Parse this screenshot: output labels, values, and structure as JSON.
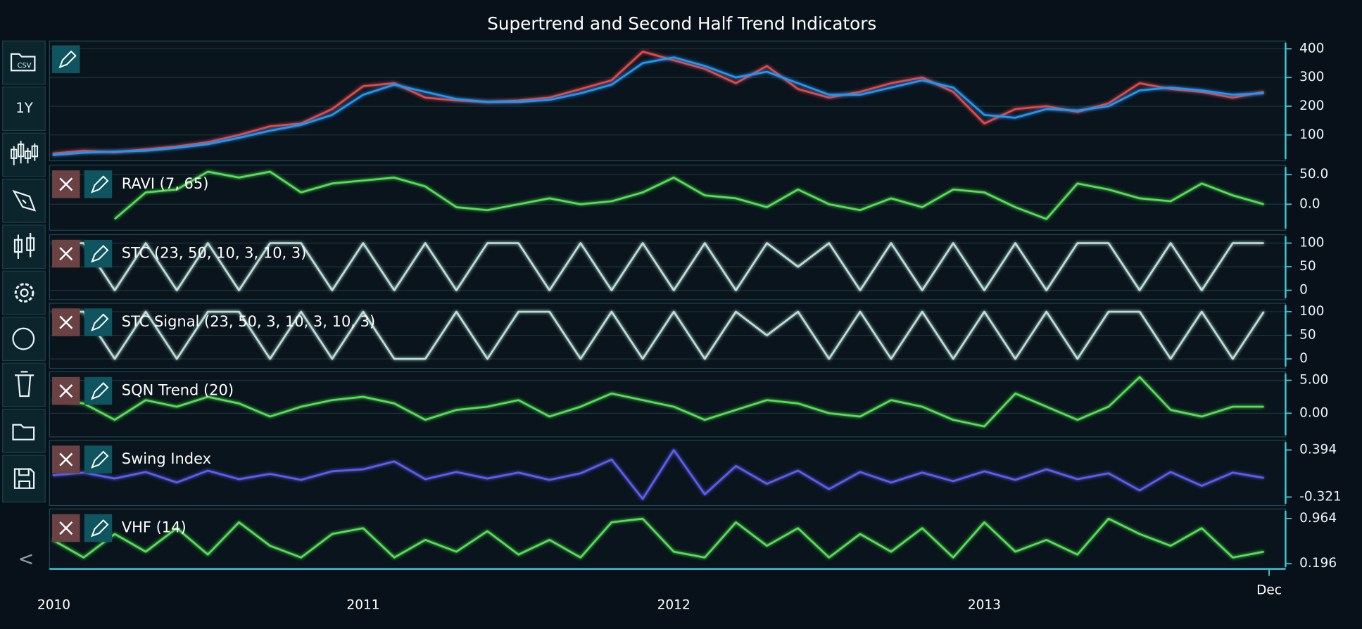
{
  "title": "Supertrend and Second Half Trend Indicators",
  "toolbar": {
    "csv": "CSV",
    "range": "1Y",
    "back": "<"
  },
  "chart_data": [
    {
      "type": "line",
      "xlim": [
        2009.99,
        2013.97
      ],
      "ylim": [
        10,
        427
      ],
      "yticks": [
        100,
        200,
        300,
        400
      ],
      "grid": true,
      "x": [
        2010.0,
        2010.1,
        2010.2,
        2010.3,
        2010.4,
        2010.5,
        2010.6,
        2010.7,
        2010.8,
        2010.9,
        2011.0,
        2011.1,
        2011.2,
        2011.3,
        2011.4,
        2011.5,
        2011.6,
        2011.7,
        2011.8,
        2011.9,
        2012.0,
        2012.1,
        2012.2,
        2012.3,
        2012.4,
        2012.5,
        2012.6,
        2012.7,
        2012.8,
        2012.9,
        2013.0,
        2013.1,
        2013.2,
        2013.3,
        2013.4,
        2013.5,
        2013.6,
        2013.7,
        2013.8,
        2013.9
      ],
      "series": [
        {
          "color": "#e0484d",
          "values": [
            35,
            45,
            40,
            50,
            60,
            75,
            100,
            130,
            140,
            190,
            270,
            280,
            230,
            220,
            215,
            220,
            230,
            260,
            290,
            390,
            360,
            330,
            280,
            340,
            260,
            230,
            250,
            280,
            300,
            250,
            140,
            190,
            200,
            180,
            210,
            280,
            260,
            250,
            230,
            250
          ]
        },
        {
          "color": "#2196f3",
          "values": [
            30,
            38,
            42,
            45,
            55,
            68,
            90,
            115,
            135,
            170,
            240,
            275,
            250,
            225,
            215,
            215,
            222,
            245,
            275,
            350,
            370,
            340,
            300,
            320,
            280,
            240,
            240,
            265,
            290,
            265,
            170,
            160,
            190,
            185,
            200,
            255,
            265,
            255,
            240,
            245
          ]
        }
      ]
    },
    {
      "type": "line",
      "label": "RAVI (7, 65)",
      "xlim": [
        2009.99,
        2013.97
      ],
      "ylim": [
        -44,
        66
      ],
      "yticks": [
        {
          "value": 50,
          "label": "50.0"
        },
        {
          "value": 0,
          "label": "0.0"
        }
      ],
      "grid": true,
      "x": [
        2010.0,
        2010.1,
        2010.2,
        2010.3,
        2010.4,
        2010.5,
        2010.6,
        2010.7,
        2010.8,
        2010.9,
        2011.0,
        2011.1,
        2011.2,
        2011.3,
        2011.4,
        2011.5,
        2011.6,
        2011.7,
        2011.8,
        2011.9,
        2012.0,
        2012.1,
        2012.2,
        2012.3,
        2012.4,
        2012.5,
        2012.6,
        2012.7,
        2012.8,
        2012.9,
        2013.0,
        2013.1,
        2013.2,
        2013.3,
        2013.4,
        2013.5,
        2013.6,
        2013.7,
        2013.8,
        2013.9
      ],
      "series": [
        {
          "color": "#52e052",
          "values": [
            null,
            null,
            -25,
            20,
            25,
            55,
            45,
            55,
            20,
            35,
            40,
            45,
            30,
            -5,
            -10,
            0,
            10,
            0,
            5,
            20,
            45,
            15,
            10,
            -5,
            25,
            0,
            -10,
            10,
            -5,
            25,
            20,
            -5,
            -25,
            35,
            25,
            10,
            5,
            35,
            15,
            0
          ]
        }
      ]
    },
    {
      "type": "line",
      "label": "STC (23, 50, 10, 3, 10, 3)",
      "xlim": [
        2009.99,
        2013.97
      ],
      "ylim": [
        -20,
        118
      ],
      "yticks": [
        0,
        50,
        100
      ],
      "grid": true,
      "x": [
        2010.0,
        2010.1,
        2010.2,
        2010.3,
        2010.4,
        2010.5,
        2010.6,
        2010.7,
        2010.8,
        2010.9,
        2011.0,
        2011.1,
        2011.2,
        2011.3,
        2011.4,
        2011.5,
        2011.6,
        2011.7,
        2011.8,
        2011.9,
        2012.0,
        2012.1,
        2012.2,
        2012.3,
        2012.4,
        2012.5,
        2012.6,
        2012.7,
        2012.8,
        2012.9,
        2013.0,
        2013.1,
        2013.2,
        2013.3,
        2013.4,
        2013.5,
        2013.6,
        2013.7,
        2013.8,
        2013.9
      ],
      "series": [
        {
          "color": "#b8e0d8",
          "values": [
            100,
            100,
            0,
            100,
            0,
            100,
            0,
            100,
            100,
            0,
            100,
            0,
            100,
            0,
            100,
            100,
            0,
            100,
            0,
            100,
            0,
            100,
            0,
            100,
            50,
            100,
            0,
            100,
            0,
            100,
            0,
            100,
            0,
            100,
            100,
            0,
            100,
            0,
            100,
            100
          ]
        }
      ]
    },
    {
      "type": "line",
      "label": "STC Signal (23, 50, 3, 10, 3, 10, 3)",
      "xlim": [
        2009.99,
        2013.97
      ],
      "ylim": [
        -20,
        118
      ],
      "yticks": [
        0,
        50,
        100
      ],
      "grid": true,
      "x": [
        2010.0,
        2010.1,
        2010.2,
        2010.3,
        2010.4,
        2010.5,
        2010.6,
        2010.7,
        2010.8,
        2010.9,
        2011.0,
        2011.1,
        2011.2,
        2011.3,
        2011.4,
        2011.5,
        2011.6,
        2011.7,
        2011.8,
        2011.9,
        2012.0,
        2012.1,
        2012.2,
        2012.3,
        2012.4,
        2012.5,
        2012.6,
        2012.7,
        2012.8,
        2012.9,
        2013.0,
        2013.1,
        2013.2,
        2013.3,
        2013.4,
        2013.5,
        2013.6,
        2013.7,
        2013.8,
        2013.9
      ],
      "series": [
        {
          "color": "#b8e0d8",
          "values": [
            100,
            100,
            0,
            100,
            0,
            100,
            100,
            0,
            100,
            0,
            100,
            0,
            0,
            100,
            0,
            100,
            100,
            0,
            100,
            0,
            100,
            0,
            100,
            50,
            100,
            0,
            100,
            0,
            100,
            0,
            100,
            0,
            100,
            0,
            100,
            100,
            0,
            100,
            0,
            100
          ]
        }
      ]
    },
    {
      "type": "line",
      "label": "SQN Trend (20)",
      "xlim": [
        2009.99,
        2013.97
      ],
      "ylim": [
        -3.6,
        6.3
      ],
      "yticks": [
        {
          "value": 5,
          "label": "5.00"
        },
        {
          "value": 0,
          "label": "0.00"
        }
      ],
      "grid": true,
      "x": [
        2010.0,
        2010.1,
        2010.2,
        2010.3,
        2010.4,
        2010.5,
        2010.6,
        2010.7,
        2010.8,
        2010.9,
        2011.0,
        2011.1,
        2011.2,
        2011.3,
        2011.4,
        2011.5,
        2011.6,
        2011.7,
        2011.8,
        2011.9,
        2012.0,
        2012.1,
        2012.2,
        2012.3,
        2012.4,
        2012.5,
        2012.6,
        2012.7,
        2012.8,
        2012.9,
        2013.0,
        2013.1,
        2013.2,
        2013.3,
        2013.4,
        2013.5,
        2013.6,
        2013.7,
        2013.8,
        2013.9
      ],
      "series": [
        {
          "color": "#52e052",
          "values": [
            2,
            1.5,
            -1,
            2,
            1,
            2.5,
            1.5,
            -0.5,
            1,
            2,
            2.5,
            1.5,
            -1,
            0.5,
            1,
            2,
            -0.5,
            1,
            3,
            2,
            1,
            -1,
            0.5,
            2,
            1.5,
            0,
            -0.5,
            2,
            1,
            -1,
            -2,
            3,
            1,
            -1,
            1,
            5.5,
            0.5,
            -0.5,
            1,
            1
          ]
        }
      ]
    },
    {
      "type": "line",
      "label": "Swing Index",
      "xlim": [
        2009.99,
        2013.97
      ],
      "ylim": [
        -0.45,
        0.54
      ],
      "yticks": [
        0.394,
        -0.321
      ],
      "grid": false,
      "x": [
        2010.0,
        2010.1,
        2010.2,
        2010.3,
        2010.4,
        2010.5,
        2010.6,
        2010.7,
        2010.8,
        2010.9,
        2011.0,
        2011.1,
        2011.2,
        2011.3,
        2011.4,
        2011.5,
        2011.6,
        2011.7,
        2011.8,
        2011.9,
        2012.0,
        2012.1,
        2012.2,
        2012.3,
        2012.4,
        2012.5,
        2012.6,
        2012.7,
        2012.8,
        2012.9,
        2013.0,
        2013.1,
        2013.2,
        2013.3,
        2013.4,
        2013.5,
        2013.6,
        2013.7,
        2013.8,
        2013.9
      ],
      "series": [
        {
          "color": "#5d5df0",
          "values": [
            0.01,
            0.05,
            -0.04,
            0.06,
            -0.1,
            0.08,
            -0.05,
            0.03,
            -0.06,
            0.07,
            0.1,
            0.22,
            -0.05,
            0.06,
            -0.04,
            0.05,
            -0.06,
            0.04,
            0.25,
            -0.35,
            0.394,
            -0.28,
            0.15,
            -0.12,
            0.08,
            -0.2,
            0.06,
            -0.1,
            0.05,
            -0.08,
            0.07,
            -0.06,
            0.1,
            -0.05,
            0.04,
            -0.22,
            0.06,
            -0.15,
            0.05,
            -0.03
          ]
        }
      ]
    },
    {
      "type": "line",
      "label": "VHF (14)",
      "xlim": [
        2009.99,
        2013.97
      ],
      "ylim": [
        0.107,
        1.126
      ],
      "yticks": [
        0.964,
        0.196
      ],
      "grid": false,
      "xticks": [
        2010,
        2011,
        2012,
        2013,
        {
          "value": 2013.917,
          "label": "Dec"
        }
      ],
      "x": [
        2010.0,
        2010.1,
        2010.2,
        2010.3,
        2010.4,
        2010.5,
        2010.6,
        2010.7,
        2010.8,
        2010.9,
        2011.0,
        2011.1,
        2011.2,
        2011.3,
        2011.4,
        2011.5,
        2011.6,
        2011.7,
        2011.8,
        2011.9,
        2012.0,
        2012.1,
        2012.2,
        2012.3,
        2012.4,
        2012.5,
        2012.6,
        2012.7,
        2012.8,
        2012.9,
        2013.0,
        2013.1,
        2013.2,
        2013.3,
        2013.4,
        2013.5,
        2013.6,
        2013.7,
        2013.8,
        2013.9
      ],
      "series": [
        {
          "color": "#52e052",
          "values": [
            0.6,
            0.3,
            0.7,
            0.4,
            0.8,
            0.35,
            0.9,
            0.5,
            0.3,
            0.7,
            0.8,
            0.3,
            0.6,
            0.4,
            0.75,
            0.35,
            0.6,
            0.3,
            0.9,
            0.96,
            0.4,
            0.3,
            0.9,
            0.5,
            0.8,
            0.3,
            0.7,
            0.4,
            0.8,
            0.3,
            0.9,
            0.4,
            0.6,
            0.35,
            0.96,
            0.7,
            0.5,
            0.8,
            0.3,
            0.4
          ]
        }
      ]
    }
  ]
}
